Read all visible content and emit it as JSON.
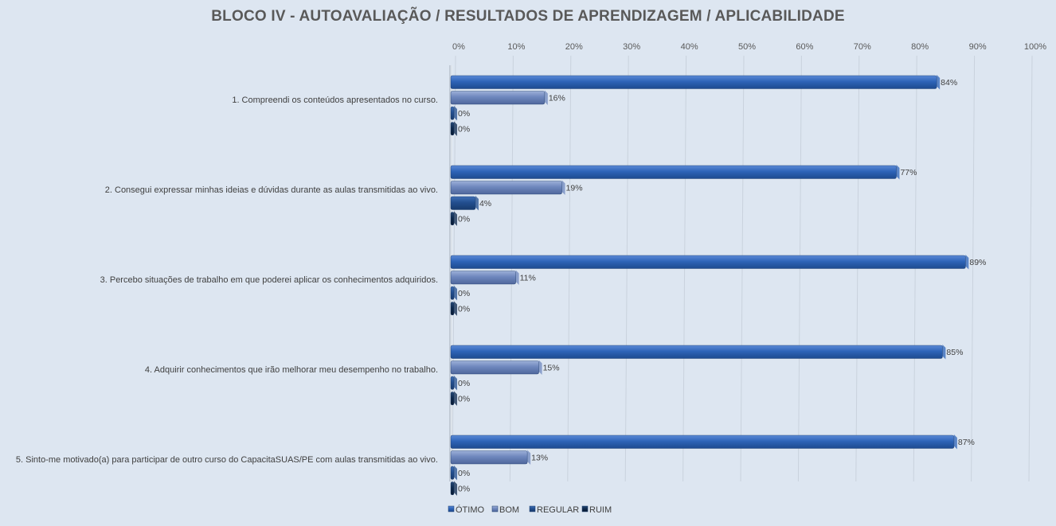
{
  "chart_data": {
    "type": "bar",
    "orientation": "horizontal",
    "title": "BLOCO IV - AUTOAVALIAÇÃO / RESULTADOS DE APRENDIZAGEM / APLICABILIDADE",
    "xlim": [
      0,
      100
    ],
    "x_ticks": [
      "0%",
      "10%",
      "20%",
      "30%",
      "40%",
      "50%",
      "60%",
      "70%",
      "80%",
      "90%",
      "100%"
    ],
    "gridlines": true,
    "legend_position": "bottom",
    "categories": [
      "1. Compreendi os conteúdos apresentados no curso.",
      "2. Consegui expressar minhas ideias e dúvidas durante as aulas transmitidas ao vivo.",
      "3. Percebo situações de trabalho em que poderei aplicar os conhecimentos adquiridos.",
      "4. Adquirir conhecimentos que irão melhorar meu desempenho no trabalho.",
      "5. Sinto-me motivado(a) para participar de outro curso do CapacitaSUAS/PE com aulas transmitidas ao vivo."
    ],
    "series": [
      {
        "name": "ÓTIMO",
        "color": "#2e64b8",
        "values": [
          84,
          77,
          89,
          85,
          87
        ],
        "labels": [
          "84%",
          "77%",
          "89%",
          "85%",
          "87%"
        ]
      },
      {
        "name": "BOM",
        "color": "#6e87bd",
        "values": [
          16,
          19,
          11,
          15,
          13
        ],
        "labels": [
          "16%",
          "19%",
          "11%",
          "15%",
          "13%"
        ]
      },
      {
        "name": "REGULAR",
        "color": "#234f8f",
        "values": [
          0,
          4,
          0,
          0,
          0
        ],
        "labels": [
          "0%",
          "4%",
          "0%",
          "0%",
          "0%"
        ]
      },
      {
        "name": "RUIM",
        "color": "#0f2a4d",
        "values": [
          0,
          0,
          0,
          0,
          0
        ],
        "labels": [
          "0%",
          "0%",
          "0%",
          "0%",
          "0%"
        ]
      }
    ]
  }
}
